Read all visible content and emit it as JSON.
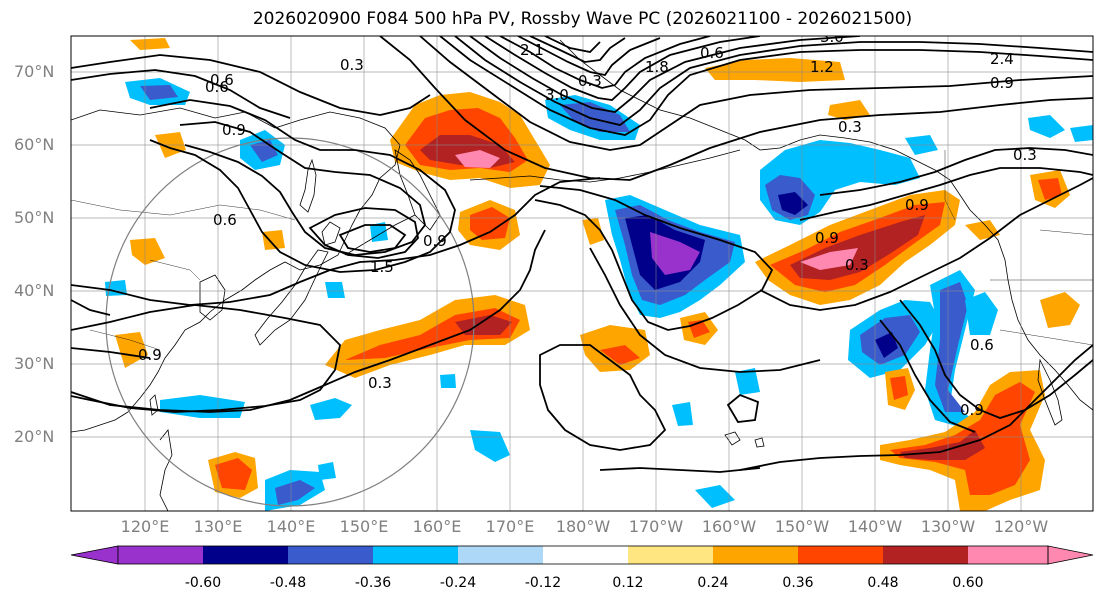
{
  "title": "2026020900 F084 500 hPa PV, Rossby Wave PC (2026021100 - 2026021500)",
  "lat_labels": [
    "70°N",
    "60°N",
    "50°N",
    "40°N",
    "30°N",
    "20°N"
  ],
  "lon_labels": [
    "120°E",
    "130°E",
    "140°E",
    "150°E",
    "160°E",
    "170°E",
    "180°W",
    "170°W",
    "160°W",
    "150°W",
    "140°W",
    "130°W",
    "120°W"
  ],
  "contour_labels": [
    "3.0",
    "2.4",
    "0.3",
    "0.9",
    "2.1",
    "0.6",
    "3.0",
    "1.8",
    "1.2",
    "0.9",
    "0.3",
    "0.3",
    "0.9",
    "0.9",
    "0.6",
    "0.9",
    "1.5",
    "0.3",
    "0.6",
    "0.9",
    "0.3",
    "0.9",
    "0.3",
    "0.6",
    "0.6"
  ],
  "colorbar": {
    "ticks": [
      "-0.60",
      "-0.48",
      "-0.36",
      "-0.24",
      "-0.12",
      "0.12",
      "0.24",
      "0.36",
      "0.48",
      "0.60"
    ],
    "colors": [
      "#9932cc",
      "#00008b",
      "#3a5bcc",
      "#00bfff",
      "#add8f8",
      "#ffffff",
      "#ffe680",
      "#ffa500",
      "#ff4500",
      "#b22222",
      "#ff88b0"
    ]
  }
}
